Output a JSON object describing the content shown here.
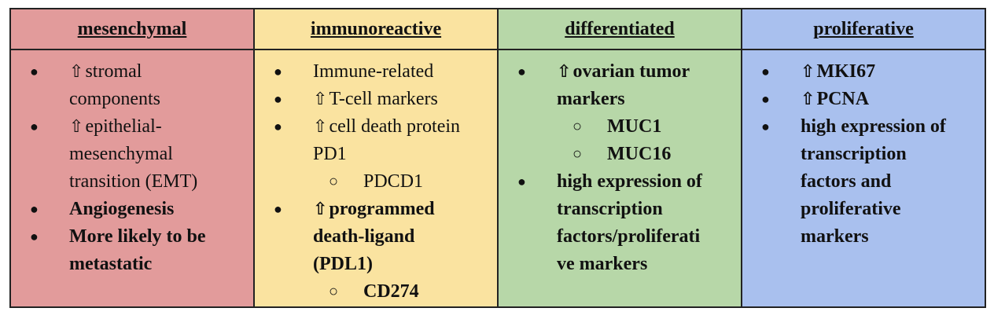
{
  "icons": {
    "arrow": "⇧",
    "bullet": "●",
    "sub_bullet": "○"
  },
  "colors": {
    "mesenchymal": "#e29b9b",
    "immunoreactive": "#fae3a0",
    "differentiated": "#b7d7a8",
    "proliferative": "#a9c0ee"
  },
  "columns": [
    {
      "header": "mesenchymal",
      "items": [
        {
          "arrow": true,
          "lines": [
            "stromal",
            "components"
          ],
          "bold": false
        },
        {
          "arrow": true,
          "lines": [
            "epithelial-",
            "mesenchymal",
            "transition (EMT)"
          ],
          "bold": false
        },
        {
          "arrow": false,
          "lines": [
            "Angiogenesis"
          ],
          "bold": true
        },
        {
          "arrow": false,
          "lines": [
            "More likely to be",
            "metastatic"
          ],
          "bold": true
        }
      ]
    },
    {
      "header": "immunoreactive",
      "items": [
        {
          "arrow": false,
          "lines": [
            "Immune-related"
          ],
          "bold": false
        },
        {
          "arrow": true,
          "lines": [
            "T-cell markers"
          ],
          "bold": false
        },
        {
          "arrow": true,
          "lines": [
            "cell death protein",
            "PD1"
          ],
          "bold": false,
          "sub": [
            "PDCD1"
          ]
        },
        {
          "arrow": true,
          "lines": [
            "programmed",
            "death-ligand",
            "(PDL1)"
          ],
          "bold": true,
          "sub": [
            "CD274"
          ]
        }
      ]
    },
    {
      "header": "differentiated",
      "items": [
        {
          "arrow": true,
          "lines": [
            "ovarian tumor",
            "markers"
          ],
          "bold": true,
          "sub": [
            "MUC1",
            "MUC16"
          ]
        },
        {
          "arrow": false,
          "lines": [
            "high expression of",
            "transcription",
            "factors/proliferati",
            "ve markers"
          ],
          "bold": true
        }
      ]
    },
    {
      "header": "proliferative",
      "items": [
        {
          "arrow": true,
          "lines": [
            "MKI67"
          ],
          "bold": true
        },
        {
          "arrow": true,
          "lines": [
            "PCNA"
          ],
          "bold": true
        },
        {
          "arrow": false,
          "lines": [
            "high expression of",
            "transcription",
            "factors and",
            "proliferative",
            "markers"
          ],
          "bold": true
        }
      ]
    }
  ]
}
